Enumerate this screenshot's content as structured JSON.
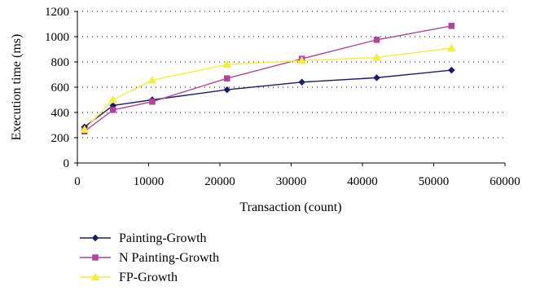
{
  "chart_data": {
    "type": "line",
    "title": "",
    "xlabel": "Transaction (count)",
    "ylabel": "Execution time (ms)",
    "xlim": [
      0,
      60000
    ],
    "ylim": [
      0,
      1200
    ],
    "x_ticks": [
      0,
      10000,
      20000,
      30000,
      40000,
      50000,
      60000
    ],
    "y_ticks": [
      0,
      200,
      400,
      600,
      800,
      1000,
      1200
    ],
    "grid": "horizontal dotted",
    "legend_position": "bottom-left",
    "series": [
      {
        "name": "Painting-Growth",
        "color": "#1a1a6e",
        "marker": "diamond",
        "x": [
          1000,
          5000,
          10500,
          21000,
          31500,
          42000,
          52500
        ],
        "y": [
          285,
          455,
          500,
          580,
          640,
          675,
          735
        ]
      },
      {
        "name": "N Painting-Growth",
        "color": "#b0449a",
        "marker": "square",
        "x": [
          1000,
          5000,
          10500,
          21000,
          31500,
          42000,
          52500
        ],
        "y": [
          250,
          420,
          485,
          670,
          825,
          975,
          1085
        ]
      },
      {
        "name": "FP-Growth",
        "color": "#f2ef3a",
        "marker": "triangle",
        "x": [
          1000,
          5000,
          10500,
          21000,
          31500,
          42000,
          52500
        ],
        "y": [
          265,
          500,
          655,
          780,
          810,
          835,
          910
        ]
      }
    ]
  }
}
